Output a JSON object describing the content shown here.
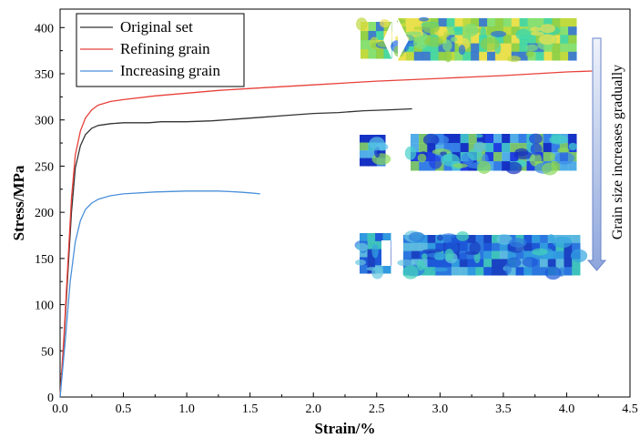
{
  "chart_data": {
    "type": "line",
    "xlabel": "Strain/%",
    "ylabel": "Stress/MPa",
    "xlim": [
      0,
      4.5
    ],
    "ylim": [
      0,
      420
    ],
    "x_ticks": [
      "0.0",
      "0.5",
      "1.0",
      "1.5",
      "2.0",
      "2.5",
      "3.0",
      "3.5",
      "4.0",
      "4.5"
    ],
    "y_ticks": [
      "0",
      "50",
      "100",
      "150",
      "200",
      "250",
      "300",
      "350",
      "400"
    ],
    "legend_position": "top-left",
    "grid": false,
    "annotation": "Grain size increases gradually",
    "series": [
      {
        "name": "Original set",
        "color": "#333333",
        "points": [
          [
            0,
            0
          ],
          [
            0.03,
            60
          ],
          [
            0.06,
            130
          ],
          [
            0.09,
            200
          ],
          [
            0.12,
            248
          ],
          [
            0.16,
            272
          ],
          [
            0.2,
            284
          ],
          [
            0.25,
            291
          ],
          [
            0.3,
            294
          ],
          [
            0.4,
            296
          ],
          [
            0.5,
            297
          ],
          [
            0.7,
            297
          ],
          [
            0.8,
            298
          ],
          [
            1.0,
            298
          ],
          [
            1.2,
            299
          ],
          [
            1.4,
            301
          ],
          [
            1.6,
            303
          ],
          [
            1.8,
            305
          ],
          [
            2.0,
            307
          ],
          [
            2.2,
            308
          ],
          [
            2.4,
            310
          ],
          [
            2.6,
            311
          ],
          [
            2.78,
            312
          ]
        ]
      },
      {
        "name": "Refining grain",
        "color": "#e8403a",
        "points": [
          [
            0,
            0
          ],
          [
            0.03,
            65
          ],
          [
            0.06,
            140
          ],
          [
            0.09,
            215
          ],
          [
            0.12,
            262
          ],
          [
            0.16,
            288
          ],
          [
            0.2,
            302
          ],
          [
            0.25,
            311
          ],
          [
            0.3,
            316
          ],
          [
            0.4,
            320
          ],
          [
            0.5,
            322
          ],
          [
            0.75,
            326
          ],
          [
            1.0,
            329
          ],
          [
            1.25,
            332
          ],
          [
            1.5,
            334
          ],
          [
            2.0,
            338
          ],
          [
            2.5,
            342
          ],
          [
            3.0,
            345
          ],
          [
            3.5,
            348
          ],
          [
            4.0,
            352
          ],
          [
            4.2,
            353
          ]
        ]
      },
      {
        "name": "Increasing grain",
        "color": "#4a90d9",
        "points": [
          [
            0,
            0
          ],
          [
            0.04,
            60
          ],
          [
            0.08,
            125
          ],
          [
            0.12,
            168
          ],
          [
            0.16,
            191
          ],
          [
            0.2,
            203
          ],
          [
            0.25,
            210
          ],
          [
            0.3,
            214
          ],
          [
            0.4,
            218
          ],
          [
            0.5,
            220
          ],
          [
            0.75,
            222
          ],
          [
            1.0,
            223
          ],
          [
            1.25,
            223
          ],
          [
            1.4,
            222
          ],
          [
            1.5,
            221
          ],
          [
            1.58,
            220
          ]
        ]
      }
    ]
  },
  "fracture_maps": [
    {
      "name": "fracture-map-refining-grain",
      "palette": [
        "#c0d940",
        "#7ee07a",
        "#37d6b0",
        "#f0e050",
        "#2a6fe0",
        "#8acf4a"
      ]
    },
    {
      "name": "fracture-map-original-set",
      "palette": [
        "#2040e0",
        "#3a8ae8",
        "#45d0c8",
        "#8ad85a",
        "#1530c0",
        "#5ac0e8"
      ]
    },
    {
      "name": "fracture-map-increasing-grain",
      "palette": [
        "#1c58d8",
        "#35a5e0",
        "#44d2b8",
        "#1a3fc0",
        "#66c8e0",
        "#2f7de0"
      ]
    }
  ]
}
